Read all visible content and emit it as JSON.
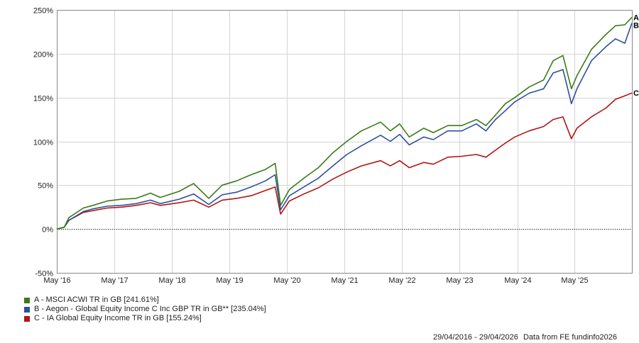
{
  "chart_data": {
    "type": "line",
    "title": "",
    "xlabel": "",
    "ylabel": "",
    "ylim": [
      -50,
      250
    ],
    "y_ticks": [
      "250%",
      "200%",
      "150%",
      "100%",
      "50%",
      "0%",
      "-50%"
    ],
    "y_tick_values": [
      250,
      200,
      150,
      100,
      50,
      0,
      -50
    ],
    "x_ticks": [
      "May '16",
      "May '17",
      "May '18",
      "May '19",
      "May '20",
      "May '21",
      "May '22",
      "May '23",
      "May '24",
      "May '25"
    ],
    "x_tick_values": [
      "2016-05",
      "2017-05",
      "2018-05",
      "2019-05",
      "2020-05",
      "2021-05",
      "2022-05",
      "2023-05",
      "2024-05",
      "2025-05"
    ],
    "xlim": [
      "2016-04-29",
      "2026-04-29"
    ],
    "grid": true,
    "legend_position": "bottom-left",
    "series": [
      {
        "name": "A - MSCI ACWI TR in GB [241.61%]",
        "end_label": "A",
        "color": "#3a7a1a",
        "points": [
          [
            "2016-04-29",
            0
          ],
          [
            "2016-06-15",
            2
          ],
          [
            "2016-07-15",
            13
          ],
          [
            "2016-10-15",
            24
          ],
          [
            "2016-12-15",
            27
          ],
          [
            "2017-03-15",
            32
          ],
          [
            "2017-06-15",
            34
          ],
          [
            "2017-09-15",
            35
          ],
          [
            "2017-12-15",
            41
          ],
          [
            "2018-02-15",
            36
          ],
          [
            "2018-06-15",
            43
          ],
          [
            "2018-09-15",
            52
          ],
          [
            "2018-12-20",
            35
          ],
          [
            "2019-03-15",
            50
          ],
          [
            "2019-06-15",
            55
          ],
          [
            "2019-09-15",
            62
          ],
          [
            "2019-12-15",
            68
          ],
          [
            "2020-02-15",
            75
          ],
          [
            "2020-03-20",
            27
          ],
          [
            "2020-05-15",
            45
          ],
          [
            "2020-08-15",
            58
          ],
          [
            "2020-11-15",
            70
          ],
          [
            "2021-02-15",
            87
          ],
          [
            "2021-05-15",
            100
          ],
          [
            "2021-08-15",
            112
          ],
          [
            "2021-12-15",
            122
          ],
          [
            "2022-02-15",
            112
          ],
          [
            "2022-04-15",
            120
          ],
          [
            "2022-06-15",
            105
          ],
          [
            "2022-09-15",
            115
          ],
          [
            "2022-11-15",
            110
          ],
          [
            "2023-02-15",
            118
          ],
          [
            "2023-05-15",
            118
          ],
          [
            "2023-08-15",
            125
          ],
          [
            "2023-10-15",
            118
          ],
          [
            "2023-12-15",
            130
          ],
          [
            "2024-02-15",
            143
          ],
          [
            "2024-04-15",
            150
          ],
          [
            "2024-07-15",
            162
          ],
          [
            "2024-10-15",
            170
          ],
          [
            "2024-12-15",
            192
          ],
          [
            "2025-02-15",
            198
          ],
          [
            "2025-04-10",
            160
          ],
          [
            "2025-05-15",
            175
          ],
          [
            "2025-08-15",
            205
          ],
          [
            "2025-11-15",
            222
          ],
          [
            "2026-01-15",
            232
          ],
          [
            "2026-03-15",
            233
          ],
          [
            "2026-04-29",
            241.61
          ]
        ]
      },
      {
        "name": "B - Aegon - Global Equity Income C Inc GBP TR in GB** [235.04%]",
        "end_label": "B",
        "color": "#2e4f9e",
        "points": [
          [
            "2016-04-29",
            0
          ],
          [
            "2016-06-15",
            2
          ],
          [
            "2016-07-15",
            10
          ],
          [
            "2016-10-15",
            20
          ],
          [
            "2016-12-15",
            23
          ],
          [
            "2017-03-15",
            26
          ],
          [
            "2017-06-15",
            27
          ],
          [
            "2017-09-15",
            29
          ],
          [
            "2017-12-15",
            33
          ],
          [
            "2018-02-15",
            29
          ],
          [
            "2018-06-15",
            34
          ],
          [
            "2018-09-15",
            40
          ],
          [
            "2018-12-20",
            28
          ],
          [
            "2019-03-15",
            39
          ],
          [
            "2019-06-15",
            42
          ],
          [
            "2019-09-15",
            48
          ],
          [
            "2019-12-15",
            55
          ],
          [
            "2020-02-15",
            62
          ],
          [
            "2020-03-20",
            22
          ],
          [
            "2020-05-15",
            38
          ],
          [
            "2020-08-15",
            48
          ],
          [
            "2020-11-15",
            58
          ],
          [
            "2021-02-15",
            72
          ],
          [
            "2021-05-15",
            85
          ],
          [
            "2021-08-15",
            95
          ],
          [
            "2021-12-15",
            107
          ],
          [
            "2022-02-15",
            100
          ],
          [
            "2022-04-15",
            108
          ],
          [
            "2022-06-15",
            96
          ],
          [
            "2022-09-15",
            105
          ],
          [
            "2022-11-15",
            102
          ],
          [
            "2023-02-15",
            112
          ],
          [
            "2023-05-15",
            112
          ],
          [
            "2023-08-15",
            120
          ],
          [
            "2023-10-15",
            112
          ],
          [
            "2023-12-15",
            125
          ],
          [
            "2024-02-15",
            135
          ],
          [
            "2024-04-15",
            145
          ],
          [
            "2024-07-15",
            155
          ],
          [
            "2024-10-15",
            160
          ],
          [
            "2024-12-15",
            178
          ],
          [
            "2025-02-15",
            182
          ],
          [
            "2025-04-10",
            143
          ],
          [
            "2025-05-15",
            160
          ],
          [
            "2025-08-15",
            192
          ],
          [
            "2025-11-15",
            208
          ],
          [
            "2026-01-15",
            217
          ],
          [
            "2026-03-15",
            212
          ],
          [
            "2026-04-29",
            235.04
          ]
        ]
      },
      {
        "name": "C - IA Global Equity Income TR in GB [155.24%]",
        "end_label": "C",
        "color": "#b21414",
        "points": [
          [
            "2016-04-29",
            0
          ],
          [
            "2016-06-15",
            2
          ],
          [
            "2016-07-15",
            10
          ],
          [
            "2016-10-15",
            19
          ],
          [
            "2016-12-15",
            21
          ],
          [
            "2017-03-15",
            24
          ],
          [
            "2017-06-15",
            25
          ],
          [
            "2017-09-15",
            27
          ],
          [
            "2017-12-15",
            30
          ],
          [
            "2018-02-15",
            27
          ],
          [
            "2018-06-15",
            30
          ],
          [
            "2018-09-15",
            33
          ],
          [
            "2018-12-20",
            25
          ],
          [
            "2019-03-15",
            33
          ],
          [
            "2019-06-15",
            35
          ],
          [
            "2019-09-15",
            38
          ],
          [
            "2019-12-15",
            44
          ],
          [
            "2020-02-15",
            48
          ],
          [
            "2020-03-20",
            17
          ],
          [
            "2020-05-15",
            32
          ],
          [
            "2020-08-15",
            40
          ],
          [
            "2020-11-15",
            47
          ],
          [
            "2021-02-15",
            57
          ],
          [
            "2021-05-15",
            65
          ],
          [
            "2021-08-15",
            72
          ],
          [
            "2021-12-15",
            78
          ],
          [
            "2022-02-15",
            72
          ],
          [
            "2022-04-15",
            78
          ],
          [
            "2022-06-15",
            70
          ],
          [
            "2022-09-15",
            76
          ],
          [
            "2022-11-15",
            74
          ],
          [
            "2023-02-15",
            82
          ],
          [
            "2023-05-15",
            83
          ],
          [
            "2023-08-15",
            85
          ],
          [
            "2023-10-15",
            82
          ],
          [
            "2023-12-15",
            90
          ],
          [
            "2024-02-15",
            98
          ],
          [
            "2024-04-15",
            105
          ],
          [
            "2024-07-15",
            112
          ],
          [
            "2024-10-15",
            117
          ],
          [
            "2024-12-15",
            125
          ],
          [
            "2025-02-15",
            128
          ],
          [
            "2025-04-10",
            103
          ],
          [
            "2025-05-15",
            115
          ],
          [
            "2025-08-15",
            128
          ],
          [
            "2025-11-15",
            138
          ],
          [
            "2026-01-15",
            148
          ],
          [
            "2026-03-15",
            152
          ],
          [
            "2026-04-29",
            155.24
          ]
        ]
      }
    ],
    "footer": [
      "29/04/2016 - 29/04/2026",
      "Data from FE fundinfo2026"
    ]
  }
}
